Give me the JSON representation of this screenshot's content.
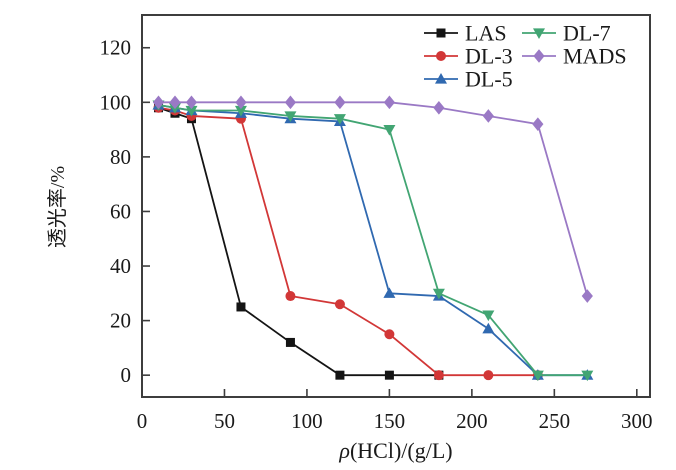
{
  "figure": {
    "background": "#ffffff",
    "axis_color": "#3d3d3d",
    "text_color": "#1a1a1a"
  },
  "chart_data": {
    "type": "line",
    "title": "",
    "xlabel": "ρ(HCl)/(g/L)",
    "xlabel_parts": {
      "symbol": "ρ",
      "rest": "(HCl)/(g/L)"
    },
    "ylabel": "透光率/%",
    "xlim": [
      0,
      308
    ],
    "ylim": [
      -8,
      132
    ],
    "x_ticks": [
      0,
      50,
      100,
      150,
      200,
      250,
      300
    ],
    "y_ticks": [
      0,
      20,
      40,
      60,
      80,
      100,
      120
    ],
    "grid": false,
    "legend_position": "top-right inside plot, two columns, no frame",
    "series": [
      {
        "name": "LAS",
        "color": "#141414",
        "marker": "square",
        "x": [
          10,
          20,
          30,
          60,
          90,
          120,
          150,
          180
        ],
        "y": [
          98,
          96,
          94,
          25,
          12,
          0,
          0,
          0
        ]
      },
      {
        "name": "DL-3",
        "color": "#d23737",
        "marker": "circle",
        "x": [
          10,
          20,
          30,
          60,
          90,
          120,
          150,
          180,
          210,
          240
        ],
        "y": [
          98,
          97,
          95,
          94,
          29,
          26,
          15,
          0,
          0,
          0
        ]
      },
      {
        "name": "DL-5",
        "color": "#3069b0",
        "marker": "triangle-up",
        "x": [
          10,
          20,
          30,
          60,
          90,
          120,
          150,
          180,
          210,
          240,
          270
        ],
        "y": [
          99,
          98,
          97,
          96,
          94,
          93,
          30,
          29,
          17,
          0,
          0
        ]
      },
      {
        "name": "DL-7",
        "color": "#42a573",
        "marker": "triangle-down",
        "x": [
          10,
          20,
          30,
          60,
          90,
          120,
          150,
          180,
          210,
          240,
          270
        ],
        "y": [
          99,
          98,
          97,
          97,
          95,
          94,
          90,
          30,
          22,
          0,
          0
        ]
      },
      {
        "name": "MADS",
        "color": "#9a79c5",
        "marker": "diamond",
        "x": [
          10,
          20,
          30,
          60,
          90,
          120,
          150,
          180,
          210,
          240,
          270
        ],
        "y": [
          100,
          100,
          100,
          100,
          100,
          100,
          100,
          98,
          95,
          92,
          29
        ]
      }
    ],
    "legend_columns": [
      [
        "LAS",
        "DL-3",
        "DL-5"
      ],
      [
        "DL-7",
        "MADS"
      ]
    ]
  }
}
